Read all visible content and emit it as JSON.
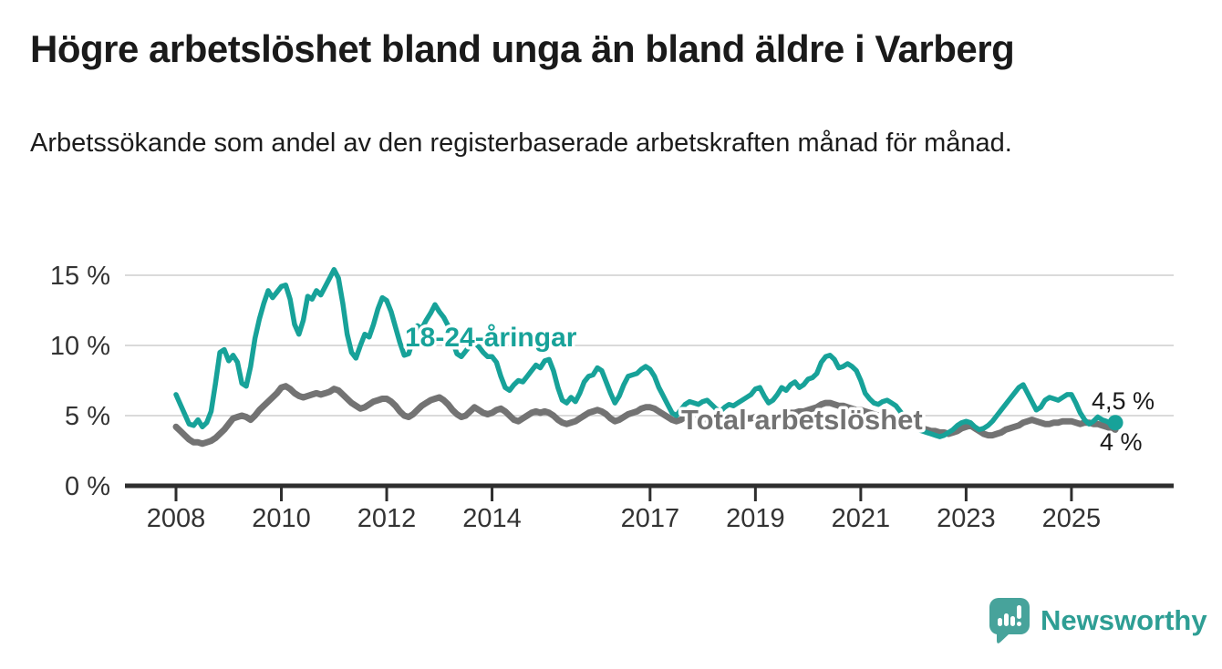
{
  "header": {
    "title": "Högre arbetslöshet bland unga än bland äldre i Varberg",
    "subtitle": "Arbetssökande som andel av den registerbaserade arbetskraften månad för månad."
  },
  "footer": {
    "brand": "Newsworthy",
    "brand_color": "#2e9e94"
  },
  "chart_data": {
    "type": "line",
    "title": "Högre arbetslöshet bland unga än bland äldre i Varberg",
    "subtitle": "Arbetssökande som andel av den registerbaserade arbetskraften månad för månad.",
    "frequency": "monthly",
    "grid": true,
    "legend_position": "inline-labels",
    "x_axis": {
      "range_years": [
        2007.6,
        2026.1
      ],
      "ticks": [
        2008,
        2010,
        2012,
        2014,
        2017,
        2019,
        2021,
        2023,
        2025
      ],
      "tick_labels": [
        "2008",
        "2010",
        "2012",
        "2014",
        "2017",
        "2019",
        "2021",
        "2023",
        "2025"
      ]
    },
    "y_axis": {
      "unit": "%",
      "range": [
        0,
        16
      ],
      "ticks": [
        0,
        5,
        10,
        15
      ],
      "tick_labels": [
        "0 %",
        "5 %",
        "10 %",
        "15 %"
      ]
    },
    "series": [
      {
        "id": "total",
        "name": "Total arbetslöshet",
        "color": "#737373",
        "start_year": 2008,
        "values": [
          4.2,
          3.9,
          3.6,
          3.3,
          3.1,
          3.1,
          3.0,
          3.1,
          3.2,
          3.4,
          3.7,
          4.0,
          4.4,
          4.8,
          4.9,
          5.0,
          4.9,
          4.7,
          5.0,
          5.4,
          5.7,
          6.0,
          6.3,
          6.6,
          7.0,
          7.1,
          6.9,
          6.6,
          6.4,
          6.3,
          6.4,
          6.5,
          6.6,
          6.5,
          6.6,
          6.7,
          6.9,
          6.8,
          6.5,
          6.2,
          5.9,
          5.7,
          5.5,
          5.6,
          5.8,
          6.0,
          6.1,
          6.2,
          6.2,
          6.0,
          5.7,
          5.3,
          5.0,
          4.9,
          5.1,
          5.4,
          5.7,
          5.9,
          6.1,
          6.2,
          6.3,
          6.1,
          5.8,
          5.4,
          5.1,
          4.9,
          5.0,
          5.3,
          5.6,
          5.4,
          5.2,
          5.1,
          5.2,
          5.4,
          5.5,
          5.3,
          5.0,
          4.7,
          4.6,
          4.8,
          5.0,
          5.2,
          5.3,
          5.2,
          5.3,
          5.2,
          5.0,
          4.7,
          4.5,
          4.4,
          4.5,
          4.6,
          4.8,
          5.0,
          5.2,
          5.3,
          5.4,
          5.3,
          5.1,
          4.8,
          4.6,
          4.7,
          4.9,
          5.1,
          5.2,
          5.3,
          5.5,
          5.6,
          5.6,
          5.5,
          5.3,
          5.1,
          4.9,
          4.7,
          4.6,
          4.7,
          4.9,
          5.0,
          5.0,
          4.9,
          4.8,
          4.7,
          4.6,
          4.4,
          4.3,
          4.4,
          4.5,
          4.6,
          4.6,
          4.7,
          4.8,
          4.8,
          4.9,
          5.0,
          4.9,
          4.8,
          4.7,
          4.8,
          5.0,
          5.1,
          5.2,
          5.2,
          5.3,
          5.3,
          5.4,
          5.5,
          5.6,
          5.8,
          5.9,
          5.9,
          5.8,
          5.7,
          5.7,
          5.6,
          5.5,
          5.4,
          5.4,
          5.3,
          5.2,
          5.1,
          5.0,
          4.9,
          4.9,
          4.8,
          4.7,
          4.6,
          4.5,
          4.4,
          4.3,
          4.2,
          4.1,
          4.0,
          3.9,
          3.9,
          3.8,
          3.8,
          3.7,
          3.8,
          3.9,
          4.1,
          4.2,
          4.3,
          4.1,
          3.9,
          3.7,
          3.6,
          3.6,
          3.7,
          3.8,
          4.0,
          4.1,
          4.2,
          4.3,
          4.5,
          4.6,
          4.7,
          4.6,
          4.5,
          4.4,
          4.4,
          4.5,
          4.5,
          4.6,
          4.6,
          4.6,
          4.5,
          4.4,
          4.5,
          4.5,
          4.4,
          4.4,
          4.3,
          4.2,
          4.1,
          4.0
        ]
      },
      {
        "id": "youth",
        "name": "18-24-åringar",
        "color": "#17a299",
        "start_year": 2008,
        "values": [
          6.5,
          5.8,
          5.1,
          4.4,
          4.3,
          4.7,
          4.2,
          4.5,
          5.3,
          7.3,
          9.5,
          9.7,
          8.9,
          9.3,
          8.8,
          7.3,
          7.1,
          8.5,
          10.5,
          11.9,
          13.0,
          13.9,
          13.4,
          13.8,
          14.2,
          14.3,
          13.3,
          11.5,
          10.8,
          11.8,
          13.5,
          13.3,
          13.9,
          13.6,
          14.2,
          14.8,
          15.4,
          14.8,
          13.0,
          10.8,
          9.5,
          9.1,
          10.0,
          10.8,
          10.6,
          11.5,
          12.6,
          13.4,
          13.2,
          12.4,
          11.3,
          10.2,
          9.3,
          9.4,
          10.4,
          11.4,
          11.2,
          11.8,
          12.3,
          12.9,
          12.4,
          12.0,
          11.4,
          10.3,
          9.4,
          9.2,
          9.6,
          10.0,
          10.2,
          9.9,
          9.5,
          9.2,
          9.2,
          8.8,
          7.8,
          7.0,
          6.8,
          7.2,
          7.5,
          7.4,
          7.8,
          8.2,
          8.6,
          8.4,
          8.9,
          9.0,
          8.2,
          7.0,
          6.1,
          5.9,
          6.3,
          6.0,
          6.6,
          7.4,
          7.8,
          7.9,
          8.4,
          8.2,
          7.4,
          6.6,
          5.9,
          6.4,
          7.2,
          7.8,
          7.9,
          8.0,
          8.3,
          8.5,
          8.3,
          7.8,
          7.0,
          6.4,
          5.8,
          5.2,
          5.0,
          5.4,
          5.8,
          6.0,
          5.9,
          5.8,
          6.0,
          6.1,
          5.8,
          5.5,
          5.3,
          5.6,
          5.8,
          5.7,
          5.9,
          6.1,
          6.3,
          6.5,
          6.9,
          7.0,
          6.4,
          5.9,
          6.1,
          6.5,
          7.0,
          6.8,
          7.2,
          7.4,
          7.0,
          7.2,
          7.6,
          7.7,
          8.0,
          8.8,
          9.2,
          9.3,
          9.0,
          8.4,
          8.5,
          8.7,
          8.5,
          8.2,
          7.5,
          6.6,
          6.2,
          5.9,
          5.8,
          6.0,
          6.1,
          5.9,
          5.7,
          5.3,
          4.9,
          4.5,
          4.2,
          4.0,
          3.9,
          3.8,
          3.7,
          3.6,
          3.5,
          3.6,
          3.8,
          4.0,
          4.3,
          4.5,
          4.6,
          4.5,
          4.2,
          4.0,
          4.1,
          4.3,
          4.6,
          5.0,
          5.4,
          5.8,
          6.2,
          6.6,
          7.0,
          7.2,
          6.6,
          6.0,
          5.4,
          5.6,
          6.1,
          6.3,
          6.2,
          6.1,
          6.3,
          6.5,
          6.5,
          5.9,
          5.2,
          4.7,
          4.4,
          4.6,
          4.9,
          4.7,
          4.6,
          4.4,
          4.5
        ]
      }
    ],
    "annotations": {
      "series_label_youth": "18-24-åringar",
      "series_label_total": "Total arbetslöshet",
      "end_value_youth": "4,5 %",
      "end_value_total": "4 %",
      "end_dot_series": "youth"
    },
    "colors": {
      "youth": "#17a299",
      "total": "#737373",
      "gridline": "#dadada",
      "axis": "#2e2e2e",
      "end_label_text": "#1a1a1a"
    }
  }
}
